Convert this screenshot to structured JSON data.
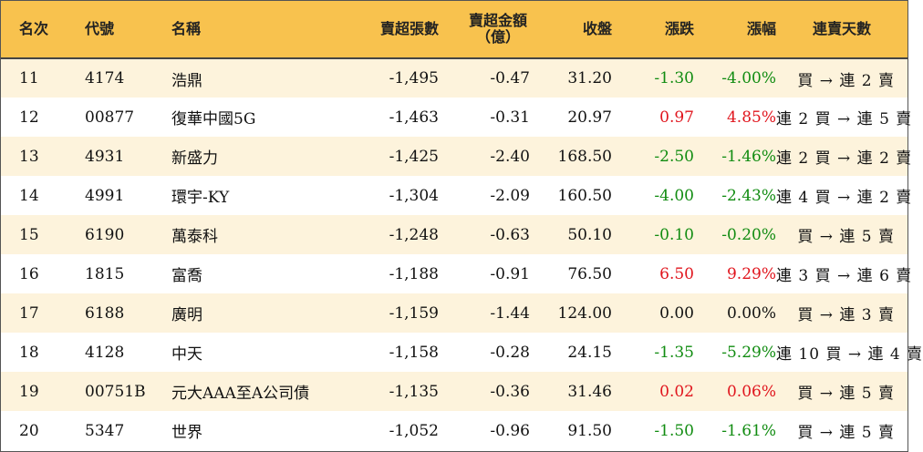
{
  "headers": {
    "rank": "名次",
    "code": "代號",
    "name": "名稱",
    "net_sell_volume": "賣超張數",
    "net_sell_amount_line1": "賣超金額",
    "net_sell_amount_line2": "（億）",
    "close": "收盤",
    "change": "漲跌",
    "change_pct": "漲幅",
    "streak": "連賣天數"
  },
  "rows": [
    {
      "rank": "11",
      "code": "4174",
      "name": "浩鼎",
      "volume": "-1,495",
      "amount": "-0.47",
      "close": "31.20",
      "change": "-1.30",
      "pct": "-4.00%",
      "direction": "down",
      "streak": "買 → 連 2 賣"
    },
    {
      "rank": "12",
      "code": "00877",
      "name": "復華中國5G",
      "volume": "-1,463",
      "amount": "-0.31",
      "close": "20.97",
      "change": "0.97",
      "pct": "4.85%",
      "direction": "up",
      "streak": "連 2 買 → 連 5 賣"
    },
    {
      "rank": "13",
      "code": "4931",
      "name": "新盛力",
      "volume": "-1,425",
      "amount": "-2.40",
      "close": "168.50",
      "change": "-2.50",
      "pct": "-1.46%",
      "direction": "down",
      "streak": "連 2 買 → 連 2 賣"
    },
    {
      "rank": "14",
      "code": "4991",
      "name": "環宇-KY",
      "volume": "-1,304",
      "amount": "-2.09",
      "close": "160.50",
      "change": "-4.00",
      "pct": "-2.43%",
      "direction": "down",
      "streak": "連 4 買 → 連 2 賣"
    },
    {
      "rank": "15",
      "code": "6190",
      "name": "萬泰科",
      "volume": "-1,248",
      "amount": "-0.63",
      "close": "50.10",
      "change": "-0.10",
      "pct": "-0.20%",
      "direction": "down",
      "streak": "買 → 連 5 賣"
    },
    {
      "rank": "16",
      "code": "1815",
      "name": "富喬",
      "volume": "-1,188",
      "amount": "-0.91",
      "close": "76.50",
      "change": "6.50",
      "pct": "9.29%",
      "direction": "up",
      "streak": "連 3 買 → 連 6 賣"
    },
    {
      "rank": "17",
      "code": "6188",
      "name": "廣明",
      "volume": "-1,159",
      "amount": "-1.44",
      "close": "124.00",
      "change": "0.00",
      "pct": "0.00%",
      "direction": "flat",
      "streak": "買 → 連 3 賣"
    },
    {
      "rank": "18",
      "code": "4128",
      "name": "中天",
      "volume": "-1,158",
      "amount": "-0.28",
      "close": "24.15",
      "change": "-1.35",
      "pct": "-5.29%",
      "direction": "down",
      "streak": "連 10 買 → 連 4 賣"
    },
    {
      "rank": "19",
      "code": "00751B",
      "name": "元大AAA至A公司債",
      "volume": "-1,135",
      "amount": "-0.36",
      "close": "31.46",
      "change": "0.02",
      "pct": "0.06%",
      "direction": "up",
      "streak": "買 → 連 5 賣"
    },
    {
      "rank": "20",
      "code": "5347",
      "name": "世界",
      "volume": "-1,052",
      "amount": "-0.96",
      "close": "91.50",
      "change": "-1.50",
      "pct": "-1.61%",
      "direction": "down",
      "streak": "買 → 連 5 賣"
    }
  ],
  "colors": {
    "header_bg": "#f8c24e",
    "stripe_bg": "#fdf3dc",
    "up": "#e0151d",
    "down": "#118c11"
  }
}
